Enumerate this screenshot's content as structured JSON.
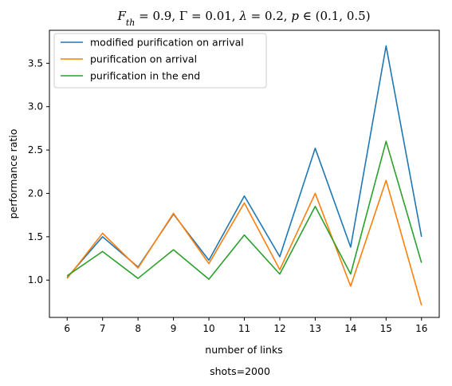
{
  "chart_data": {
    "type": "line",
    "title": "F_th = 0.9, Γ = 0.01, λ = 0.2, p ∈ (0.1, 0.5)",
    "title_parts": {
      "f_sym": "F",
      "f_sub": "th",
      "rest": " = 0.9, Γ = 0.01, ",
      "lambda": "λ",
      "rest2": " = 0.2, ",
      "p": "p",
      "rest3": " ∈ (0.1, 0.5)"
    },
    "xlabel": "number of links",
    "ylabel": "performance ratio",
    "caption": "shots=2000",
    "x": [
      6,
      7,
      8,
      9,
      10,
      11,
      12,
      13,
      14,
      15,
      16
    ],
    "xlim": [
      5.5,
      16.5
    ],
    "ylim": [
      0.57,
      3.88
    ],
    "yticks": [
      1.0,
      1.5,
      2.0,
      2.5,
      3.0,
      3.5
    ],
    "ytick_labels": [
      "1.0",
      "1.5",
      "2.0",
      "2.5",
      "3.0",
      "3.5"
    ],
    "xtick_labels": [
      "6",
      "7",
      "8",
      "9",
      "10",
      "11",
      "12",
      "13",
      "14",
      "15",
      "16"
    ],
    "grid": false,
    "legend": "top-left",
    "series": [
      {
        "name": "modified purification on arrival",
        "color": "#1f77b4",
        "values": [
          1.03,
          1.5,
          1.15,
          1.76,
          1.23,
          1.97,
          1.27,
          2.52,
          1.38,
          3.7,
          1.5
        ]
      },
      {
        "name": "purification on arrival",
        "color": "#ff7f0e",
        "values": [
          1.02,
          1.54,
          1.14,
          1.77,
          1.19,
          1.89,
          1.12,
          2.0,
          0.93,
          2.15,
          0.71
        ]
      },
      {
        "name": "purification in the end",
        "color": "#2ca02c",
        "values": [
          1.05,
          1.33,
          1.02,
          1.35,
          1.01,
          1.52,
          1.07,
          1.85,
          1.07,
          2.6,
          1.2
        ]
      }
    ]
  }
}
